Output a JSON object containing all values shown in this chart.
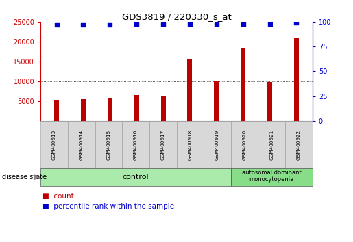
{
  "title": "GDS3819 / 220330_s_at",
  "samples": [
    "GSM400913",
    "GSM400914",
    "GSM400915",
    "GSM400916",
    "GSM400917",
    "GSM400918",
    "GSM400919",
    "GSM400920",
    "GSM400921",
    "GSM400922"
  ],
  "counts": [
    5200,
    5500,
    5700,
    6500,
    6400,
    15700,
    10000,
    18500,
    9800,
    20900
  ],
  "percentile_ranks": [
    97,
    97,
    97,
    98,
    98,
    98,
    98,
    98,
    98,
    99
  ],
  "ylim_left": [
    0,
    25000
  ],
  "ylim_right": [
    0,
    100
  ],
  "yticks_left": [
    5000,
    10000,
    15000,
    20000,
    25000
  ],
  "yticks_right": [
    0,
    25,
    50,
    75,
    100
  ],
  "bar_color": "#bb0000",
  "scatter_color": "#0000cc",
  "n_control": 7,
  "control_label": "control",
  "disease_label": "autosomal dominant\nmonocytopenia",
  "control_bg": "#aaeaaa",
  "disease_bg": "#88dd88",
  "sample_bg": "#d8d8d8",
  "legend_count_label": "count",
  "legend_pct_label": "percentile rank within the sample",
  "disease_state_label": "disease state",
  "left_tick_color": "#cc0000",
  "right_tick_color": "#0000cc",
  "dotted_line_color": "#111111",
  "bar_width": 0.18,
  "figsize": [
    5.15,
    3.54
  ],
  "dpi": 100
}
